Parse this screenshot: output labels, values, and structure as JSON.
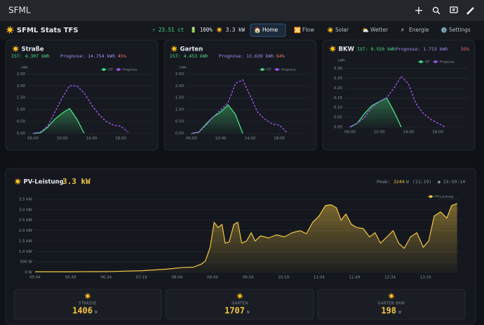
{
  "app_bar": {
    "title": "SFML"
  },
  "status_bar": {
    "brand": "☀️ SFML Stats TFS",
    "price": "⚡ 23.51 ct",
    "battery": "🔋 100%",
    "power": "☀️ 3.3 kW"
  },
  "nav": [
    {
      "icon": "🏠",
      "label": "Home"
    },
    {
      "icon": "🔀",
      "label": "Flow"
    },
    {
      "icon": "☀️",
      "label": "Solar"
    },
    {
      "icon": "⛅",
      "label": "Wetter"
    },
    {
      "icon": "⚡",
      "label": "Energie"
    },
    {
      "icon": "⚙️",
      "label": "Settings"
    }
  ],
  "panels": [
    {
      "title": "☀️ Straße",
      "ist": "IST: 4.307 kWh",
      "prognose": "Prognose: 14.754 kWh",
      "percent": "45%",
      "chart": {
        "type": "line",
        "y_label": "kWh",
        "x": [
          6,
          7,
          8,
          9,
          10,
          11,
          12,
          13,
          14,
          15,
          16,
          17,
          18,
          19
        ],
        "series": [
          {
            "name": "IST",
            "color": "#4ade80",
            "area": true,
            "values": [
              0,
              0.02,
              0.25,
              0.6,
              0.85,
              1.05,
              0.6,
              0,
              null,
              null,
              null,
              null,
              null,
              null
            ]
          },
          {
            "name": "Prognose",
            "color": "#a855f7",
            "dashed": true,
            "values": [
              0,
              0.05,
              0.3,
              0.9,
              1.5,
              2.0,
              2.0,
              1.7,
              1.2,
              0.8,
              0.5,
              0.35,
              0.3,
              0.05
            ]
          }
        ],
        "xlim": [
          5.33,
          22.1
        ],
        "xticks": [
          {
            "value": 6,
            "label": "06:00"
          },
          {
            "value": 10,
            "label": "10:00"
          },
          {
            "value": 14,
            "label": "14:00"
          },
          {
            "value": 18,
            "label": "18:00"
          }
        ],
        "ylim": [
          0,
          2.6
        ],
        "yticks": [
          {
            "value": 0,
            "label": "0.00"
          },
          {
            "value": 0.5,
            "label": "0.50"
          },
          {
            "value": 1,
            "label": "1.00"
          },
          {
            "value": 1.5,
            "label": "1.50"
          },
          {
            "value": 2,
            "label": "2.00"
          },
          {
            "value": 2.5,
            "label": "2.50"
          }
        ]
      }
    },
    {
      "title": "☀️ Garten",
      "ist": "IST: 4.453 kWh",
      "prognose": "Prognose: 13.639 kWh",
      "percent": "64%",
      "chart": {
        "type": "line",
        "y_label": "kWh",
        "x": [
          6,
          7,
          8,
          9,
          10,
          11,
          12,
          13,
          14,
          15,
          16,
          17,
          18,
          19
        ],
        "series": [
          {
            "name": "IST",
            "color": "#4ade80",
            "area": true,
            "values": [
              0,
              0.05,
              0.4,
              0.7,
              0.9,
              1.2,
              0.8,
              0,
              null,
              null,
              null,
              null,
              null,
              null
            ]
          },
          {
            "name": "Prognose",
            "color": "#a855f7",
            "dashed": true,
            "values": [
              0,
              0.05,
              0.35,
              0.7,
              1.0,
              1.3,
              2.1,
              2.25,
              1.6,
              0.9,
              0.6,
              0.4,
              0.35,
              0.05
            ]
          }
        ],
        "xlim": [
          5.33,
          22.1
        ],
        "xticks": [
          {
            "value": 6,
            "label": "06:00"
          },
          {
            "value": 10,
            "label": "10:00"
          },
          {
            "value": 14,
            "label": "14:00"
          },
          {
            "value": 18,
            "label": "18:00"
          }
        ],
        "ylim": [
          0,
          2.6
        ],
        "yticks": [
          {
            "value": 0,
            "label": "0.00"
          },
          {
            "value": 0.5,
            "label": "0.50"
          },
          {
            "value": 1,
            "label": "1.00"
          },
          {
            "value": 1.5,
            "label": "1.50"
          },
          {
            "value": 2,
            "label": "2.00"
          },
          {
            "value": 2.5,
            "label": "2.50"
          }
        ]
      }
    },
    {
      "title": "☀️ BKW",
      "ist": "IST: 0.550 kWh",
      "prognose": "Prognose: 1.713 kWh",
      "percent": "55%",
      "chart": {
        "type": "line",
        "y_label": "kWh",
        "x": [
          6,
          7,
          8,
          9,
          10,
          11,
          12,
          13,
          14,
          15,
          16,
          17,
          18,
          19
        ],
        "series": [
          {
            "name": "IST",
            "color": "#4ade80",
            "area": true,
            "values": [
              0,
              0.02,
              0.07,
              0.11,
              0.13,
              0.15,
              0.08,
              0,
              null,
              null,
              null,
              null,
              null,
              null
            ]
          },
          {
            "name": "Prognose",
            "color": "#a855f7",
            "dashed": true,
            "values": [
              0,
              0.02,
              0.05,
              0.1,
              0.13,
              0.15,
              0.2,
              0.26,
              0.22,
              0.12,
              0.07,
              0.04,
              0.02,
              0
            ]
          }
        ],
        "xlim": [
          5.33,
          22.1
        ],
        "xticks": [
          {
            "value": 6,
            "label": "06:00"
          },
          {
            "value": 10,
            "label": "10:00"
          },
          {
            "value": 14,
            "label": "14:00"
          },
          {
            "value": 18,
            "label": "18:00"
          }
        ],
        "ylim": [
          0,
          0.32
        ],
        "yticks": [
          {
            "value": 0,
            "label": "0.00"
          },
          {
            "value": 0.05,
            "label": "0.05"
          },
          {
            "value": 0.1,
            "label": "0.10"
          },
          {
            "value": 0.15,
            "label": "0.15"
          },
          {
            "value": 0.2,
            "label": "0.20"
          },
          {
            "value": 0.25,
            "label": "0.25"
          },
          {
            "value": 0.3,
            "label": "0.30"
          }
        ]
      }
    }
  ],
  "chart_data": {
    "type": "area",
    "title": "☀️ PV-Leistung",
    "current": "3.3 kW",
    "peak_label": "Peak:",
    "peak": 3244,
    "peak_unit": "W",
    "peak_time": "(11:19)",
    "clock": "● 13:59:14",
    "x": [
      304,
      350,
      400,
      440,
      470,
      490,
      505,
      515,
      520,
      526,
      531,
      536,
      541,
      545,
      550,
      556,
      561,
      566,
      572,
      578,
      583,
      590,
      600,
      610,
      620,
      630,
      640,
      648,
      656,
      664,
      672,
      679,
      686,
      692,
      698,
      705,
      712,
      720,
      728,
      735,
      742,
      750,
      758,
      765,
      772,
      780,
      788,
      796,
      803,
      810,
      818,
      826,
      832,
      839
    ],
    "series": [
      {
        "name": "PV-Leistung",
        "color": "#f5c542",
        "values": [
          30,
          30,
          40,
          80,
          150,
          230,
          250,
          400,
          550,
          1200,
          2400,
          2150,
          2300,
          1400,
          1450,
          2300,
          2400,
          1400,
          1500,
          1900,
          1500,
          1750,
          1650,
          1800,
          1700,
          1900,
          2000,
          1850,
          2400,
          2700,
          3200,
          3244,
          3100,
          2500,
          2800,
          2300,
          2150,
          2100,
          1700,
          1900,
          1400,
          1700,
          2000,
          1400,
          1150,
          1700,
          1900,
          1200,
          1500,
          2700,
          2900,
          2600,
          3200,
          3300
        ]
      }
    ],
    "xlim": [
      304,
      842
    ],
    "xticks": [
      {
        "value": 304,
        "label": "05:04"
      },
      {
        "value": 349,
        "label": "05:49"
      },
      {
        "value": 394,
        "label": "06:34"
      },
      {
        "value": 439,
        "label": "07:19"
      },
      {
        "value": 484,
        "label": "08:04"
      },
      {
        "value": 529,
        "label": "08:49"
      },
      {
        "value": 574,
        "label": "09:34"
      },
      {
        "value": 619,
        "label": "10:19"
      },
      {
        "value": 664,
        "label": "11:04"
      },
      {
        "value": 709,
        "label": "11:49"
      },
      {
        "value": 754,
        "label": "12:34"
      },
      {
        "value": 799,
        "label": "13:19"
      }
    ],
    "ylim": [
      0,
      3500
    ],
    "yticks": [
      {
        "value": 0,
        "label": "0 W"
      },
      {
        "value": 500,
        "label": "500 W"
      },
      {
        "value": 1000,
        "label": "1.0 kW"
      },
      {
        "value": 1500,
        "label": "1.5 kW"
      },
      {
        "value": 2000,
        "label": "2.0 kW"
      },
      {
        "value": 2500,
        "label": "2.5 kW"
      },
      {
        "value": 3000,
        "label": "3.0 kW"
      },
      {
        "value": 3500,
        "label": "3.5 kW"
      }
    ],
    "grid": true
  },
  "stats": [
    {
      "icon": "☀️",
      "label": "STRASSE",
      "value": 1406,
      "unit": "W"
    },
    {
      "icon": "☀️",
      "label": "GARTEN",
      "value": 1707,
      "unit": "W"
    },
    {
      "icon": "☀️",
      "label": "GARTEN BKW",
      "value": 198,
      "unit": "W"
    }
  ]
}
